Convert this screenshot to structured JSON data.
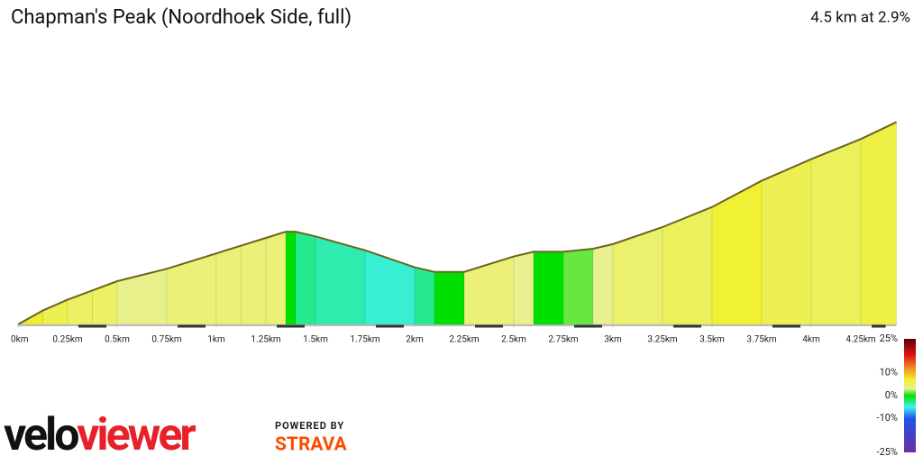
{
  "chart_data": {
    "type": "elevation-profile",
    "title": "Chapman's Peak (Noordhoek Side, full)",
    "subtitle": "4.5 km at 2.9%",
    "x": [
      0,
      0.125,
      0.25,
      0.375,
      0.5,
      0.75,
      1.0,
      1.125,
      1.25,
      1.35,
      1.4,
      1.5,
      1.75,
      2.0,
      2.1,
      2.25,
      2.5,
      2.6,
      2.75,
      2.9,
      3.0,
      3.25,
      3.5,
      3.75,
      4.0,
      4.25,
      4.43
    ],
    "elevation": [
      0,
      9,
      16,
      22,
      28,
      36,
      46,
      51,
      56,
      60,
      60,
      57,
      48,
      37,
      34,
      34,
      44,
      47,
      47,
      49,
      52,
      63,
      76,
      93,
      107,
      120,
      131
    ],
    "xlim": [
      0,
      4.5
    ],
    "ylim": [
      0,
      140
    ],
    "xticks": [
      {
        "value": 0,
        "label": "0km"
      },
      {
        "value": 0.25,
        "label": "0.25km"
      },
      {
        "value": 0.5,
        "label": "0.5km"
      },
      {
        "value": 0.75,
        "label": "0.75km"
      },
      {
        "value": 1,
        "label": "1km"
      },
      {
        "value": 1.25,
        "label": "1.25km"
      },
      {
        "value": 1.5,
        "label": "1.5km"
      },
      {
        "value": 1.75,
        "label": "1.75km"
      },
      {
        "value": 2,
        "label": "2km"
      },
      {
        "value": 2.25,
        "label": "2.25km"
      },
      {
        "value": 2.5,
        "label": "2.5km"
      },
      {
        "value": 2.75,
        "label": "2.75km"
      },
      {
        "value": 3,
        "label": "3km"
      },
      {
        "value": 3.25,
        "label": "3.25km"
      },
      {
        "value": 3.5,
        "label": "3.5km"
      },
      {
        "value": 3.75,
        "label": "3.75km"
      },
      {
        "value": 4,
        "label": "4km"
      },
      {
        "value": 4.25,
        "label": "4.25km"
      }
    ],
    "gradient_legend": {
      "lim": [
        -25,
        25
      ],
      "ticks": [
        {
          "value": 25,
          "label": "25%"
        },
        {
          "value": 10,
          "label": "10%"
        },
        {
          "value": 0,
          "label": "0%"
        },
        {
          "value": -10,
          "label": "-10%"
        },
        {
          "value": -25,
          "label": "-25%"
        }
      ],
      "colorscale": [
        [
          -25,
          "#6a2fa0"
        ],
        [
          -10,
          "#1f55e8"
        ],
        [
          -5,
          "#40f0f0"
        ],
        [
          0,
          "#00e000"
        ],
        [
          3,
          "#e8f090"
        ],
        [
          7,
          "#f0f030"
        ],
        [
          12,
          "#f09020"
        ],
        [
          18,
          "#e01010"
        ],
        [
          25,
          "#5a0000"
        ]
      ]
    }
  },
  "branding": {
    "logo_left": "velo",
    "logo_right": "viewer",
    "powered_by": "POWERED BY",
    "strava": "STRAVA"
  }
}
